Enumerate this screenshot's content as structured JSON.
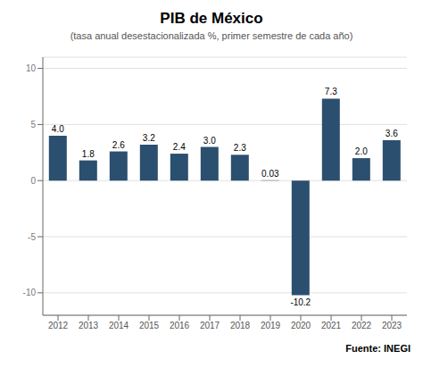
{
  "chart_data": {
    "type": "bar",
    "title": "PIB de México",
    "subtitle": "(tasa anual desestacionalizada %, primer semestre de cada año)",
    "annotations": [
      "Fuente: INEGI"
    ],
    "categories": [
      "2012",
      "2013",
      "2014",
      "2015",
      "2016",
      "2017",
      "2018",
      "2019",
      "2020",
      "2021",
      "2022",
      "2023"
    ],
    "values": [
      4.0,
      1.8,
      2.6,
      3.2,
      2.4,
      3.0,
      2.3,
      0.03,
      -10.2,
      7.3,
      2.0,
      3.6
    ],
    "value_labels": [
      "4.0",
      "1.8",
      "2.6",
      "3.2",
      "2.4",
      "3.0",
      "2.3",
      "0.03",
      "-10.2",
      "7.3",
      "2.0",
      "3.6"
    ],
    "data_labels": true,
    "color": "#2b4f6e",
    "ylim": [
      -12,
      11
    ],
    "yticks": [
      -10,
      -5,
      0,
      5,
      10
    ],
    "grid": true
  }
}
